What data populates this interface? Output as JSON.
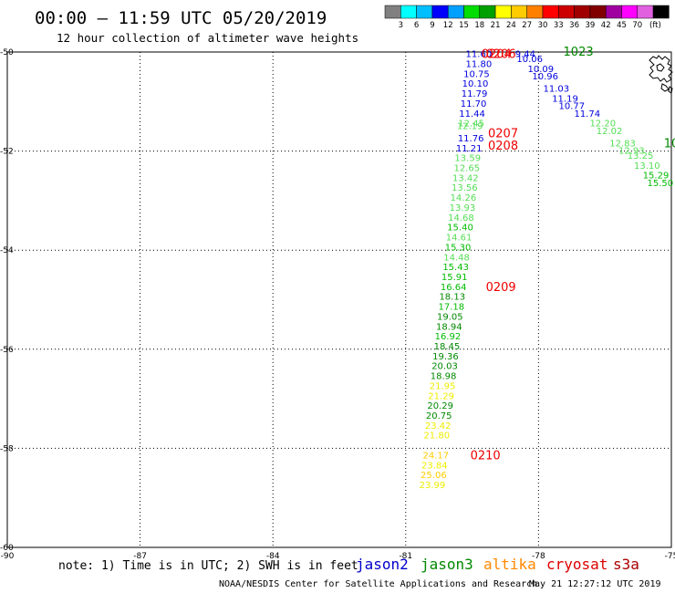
{
  "header": {
    "title": "00:00 – 11:59 UTC 05/20/2019",
    "subtitle": "12 hour collection of altimeter wave heights"
  },
  "colorbar": {
    "unit_label": "(ft)",
    "labels": [
      "3",
      "6",
      "9",
      "12",
      "15",
      "18",
      "21",
      "24",
      "27",
      "30",
      "33",
      "36",
      "39",
      "42",
      "45",
      "70"
    ],
    "colors": [
      "#808080",
      "#00ffff",
      "#00bfff",
      "#0000ff",
      "#00a0ff",
      "#00dd00",
      "#00a000",
      "#ffff00",
      "#ffcc00",
      "#ff8000",
      "#ff0000",
      "#cc0000",
      "#a00000",
      "#800000",
      "#a000a0",
      "#ff00ff",
      "#e060e0",
      "#000000"
    ]
  },
  "footer": {
    "note": "note: 1) Time is in UTC; 2) SWH is in feet",
    "legend": [
      {
        "name": "jason2",
        "color": "#0000cc"
      },
      {
        "name": "jason3",
        "color": "#008800"
      },
      {
        "name": "altika",
        "color": "#ff8800"
      },
      {
        "name": "cryosat",
        "color": "#dd0000"
      },
      {
        "name": "s3a",
        "color": "#aa0000"
      }
    ],
    "credit": "NOAA/NESDIS Center for Satellite Applications and Research",
    "timestamp": "May 21 12:27:12 UTC 2019"
  },
  "chart_data": {
    "type": "scatter",
    "xlim": [
      -90,
      -75
    ],
    "ylim": [
      -60,
      -50
    ],
    "x_ticks": [
      -90,
      -87,
      -84,
      -81,
      -78,
      -75
    ],
    "y_ticks": [
      -50,
      -52,
      -54,
      -56,
      -58,
      -60
    ],
    "grid": true,
    "tracks": [
      {
        "name": "main track",
        "color_scale": "swh",
        "points": [
          {
            "x": -79.35,
            "y": -50.03,
            "v": "11.60"
          },
          {
            "x": -79.35,
            "y": -50.23,
            "v": "11.80"
          },
          {
            "x": -79.4,
            "y": -50.43,
            "v": "10.75"
          },
          {
            "x": -79.43,
            "y": -50.63,
            "v": "10.10"
          },
          {
            "x": -79.45,
            "y": -50.83,
            "v": "11.79"
          },
          {
            "x": -79.47,
            "y": -51.03,
            "v": "11.70"
          },
          {
            "x": -79.5,
            "y": -51.23,
            "v": "11.44"
          },
          {
            "x": -79.52,
            "y": -51.43,
            "v": "12.45"
          },
          {
            "x": -79.55,
            "y": -51.48,
            "v": "12.19"
          },
          {
            "x": -79.53,
            "y": -51.73,
            "v": "11.76"
          },
          {
            "x": -79.57,
            "y": -51.93,
            "v": "11.21"
          },
          {
            "x": -79.6,
            "y": -52.13,
            "v": "13.59"
          },
          {
            "x": -79.62,
            "y": -52.33,
            "v": "12.65"
          },
          {
            "x": -79.65,
            "y": -52.53,
            "v": "13.42"
          },
          {
            "x": -79.67,
            "y": -52.73,
            "v": "13.56"
          },
          {
            "x": -79.7,
            "y": -52.93,
            "v": "14.26"
          },
          {
            "x": -79.72,
            "y": -53.13,
            "v": "13.93"
          },
          {
            "x": -79.75,
            "y": -53.33,
            "v": "14.68"
          },
          {
            "x": -79.77,
            "y": -53.53,
            "v": "15.40"
          },
          {
            "x": -79.8,
            "y": -53.73,
            "v": "14.61"
          },
          {
            "x": -79.82,
            "y": -53.93,
            "v": "15.30"
          },
          {
            "x": -79.85,
            "y": -54.13,
            "v": "14.48"
          },
          {
            "x": -79.87,
            "y": -54.33,
            "v": "15.43"
          },
          {
            "x": -79.9,
            "y": -54.53,
            "v": "15.91"
          },
          {
            "x": -79.92,
            "y": -54.73,
            "v": "16.64"
          },
          {
            "x": -79.95,
            "y": -54.93,
            "v": "18.13"
          },
          {
            "x": -79.97,
            "y": -55.13,
            "v": "17.18"
          },
          {
            "x": -80.0,
            "y": -55.33,
            "v": "19.05"
          },
          {
            "x": -80.02,
            "y": -55.53,
            "v": "18.94"
          },
          {
            "x": -80.05,
            "y": -55.73,
            "v": "16.92"
          },
          {
            "x": -80.07,
            "y": -55.93,
            "v": "18.45"
          },
          {
            "x": -80.1,
            "y": -56.13,
            "v": "19.36"
          },
          {
            "x": -80.12,
            "y": -56.33,
            "v": "20.03"
          },
          {
            "x": -80.15,
            "y": -56.53,
            "v": "18.98"
          },
          {
            "x": -80.17,
            "y": -56.73,
            "v": "21.95"
          },
          {
            "x": -80.2,
            "y": -56.93,
            "v": "21.29"
          },
          {
            "x": -80.22,
            "y": -57.13,
            "v": "20.29"
          },
          {
            "x": -80.25,
            "y": -57.33,
            "v": "20.75"
          },
          {
            "x": -80.27,
            "y": -57.53,
            "v": "23.42"
          },
          {
            "x": -80.3,
            "y": -57.73,
            "v": "21.80"
          },
          {
            "x": -80.32,
            "y": -58.13,
            "v": "24.17"
          },
          {
            "x": -80.35,
            "y": -58.33,
            "v": "23.84"
          },
          {
            "x": -80.37,
            "y": -58.53,
            "v": "25.06"
          },
          {
            "x": -80.4,
            "y": -58.73,
            "v": "23.99"
          }
        ]
      },
      {
        "name": "east track",
        "color_scale": "swh",
        "points": [
          {
            "x": -78.3,
            "y": -50.03,
            "v": "9.44"
          },
          {
            "x": -78.2,
            "y": -50.13,
            "v": "10.06"
          },
          {
            "x": -77.95,
            "y": -50.33,
            "v": "10.09"
          },
          {
            "x": -77.85,
            "y": -50.48,
            "v": "10.96"
          },
          {
            "x": -77.6,
            "y": -50.73,
            "v": "11.03"
          },
          {
            "x": -77.4,
            "y": -50.93,
            "v": "11.19"
          },
          {
            "x": -77.25,
            "y": -51.08,
            "v": "10.77"
          },
          {
            "x": -76.9,
            "y": -51.23,
            "v": "11.74"
          },
          {
            "x": -76.55,
            "y": -51.43,
            "v": "12.20"
          },
          {
            "x": -76.4,
            "y": -51.58,
            "v": "12.02"
          },
          {
            "x": -76.1,
            "y": -51.83,
            "v": "12.83"
          },
          {
            "x": -75.9,
            "y": -51.98,
            "v": "12.93"
          },
          {
            "x": -75.7,
            "y": -52.08,
            "v": "13.25"
          },
          {
            "x": -75.55,
            "y": -52.28,
            "v": "13.10"
          },
          {
            "x": -75.35,
            "y": -52.48,
            "v": "15.29"
          },
          {
            "x": -75.25,
            "y": -52.63,
            "v": "15.50"
          }
        ]
      }
    ],
    "time_labels": [
      {
        "x": -78.85,
        "y": -50.03,
        "text": "0206",
        "color": "#ee0000"
      },
      {
        "x": -78.95,
        "y": -50.03,
        "text": "0204",
        "color": "#ee0000"
      },
      {
        "x": -77.1,
        "y": -49.98,
        "text": "1023",
        "color": "#008800"
      },
      {
        "x": -78.8,
        "y": -51.63,
        "text": "0207",
        "color": "#ee0000"
      },
      {
        "x": -78.8,
        "y": -51.88,
        "text": "0208",
        "color": "#ee0000"
      },
      {
        "x": -75.0,
        "y": -51.83,
        "text": "10",
        "color": "#008800"
      },
      {
        "x": -78.85,
        "y": -54.73,
        "text": "0209",
        "color": "#ee0000"
      },
      {
        "x": -79.2,
        "y": -58.13,
        "text": "0210",
        "color": "#ee0000"
      }
    ]
  }
}
